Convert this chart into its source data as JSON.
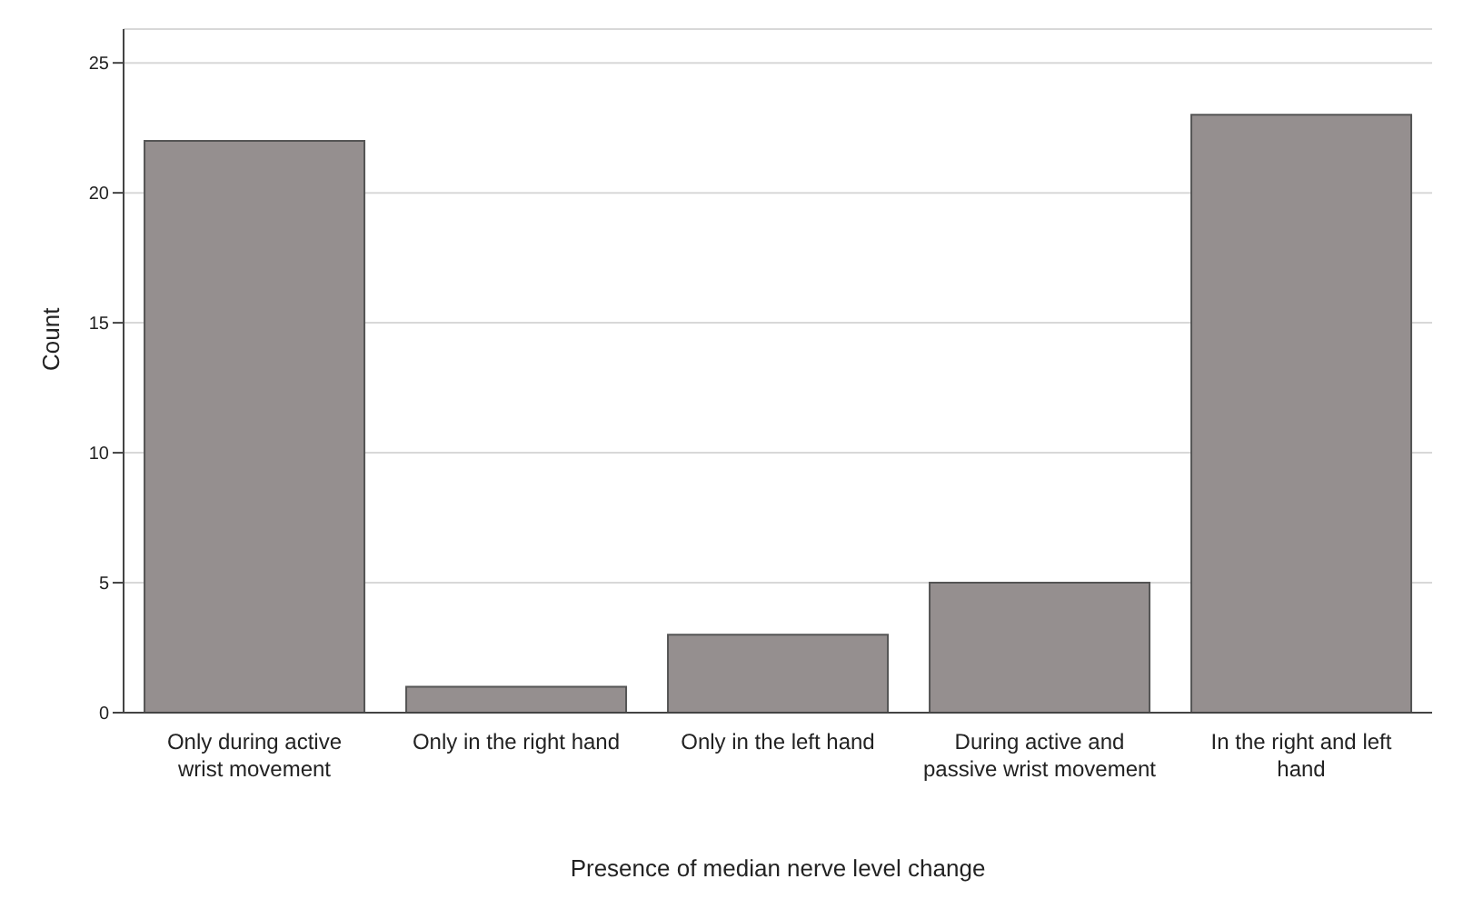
{
  "chart_data": {
    "type": "bar",
    "xlabel": "Presence of median nerve level change",
    "ylabel": "Count",
    "categories": [
      "Only during active wrist movement",
      "Only in the right hand",
      "Only in the left hand",
      "During active and passive wrist movement",
      "In the right and left hand"
    ],
    "values": [
      22,
      1,
      3,
      5,
      23
    ],
    "color": "#958f8f",
    "ylim": [
      0,
      26.3
    ],
    "yticks": [
      0,
      5,
      10,
      15,
      20,
      25
    ],
    "grid": "y"
  }
}
